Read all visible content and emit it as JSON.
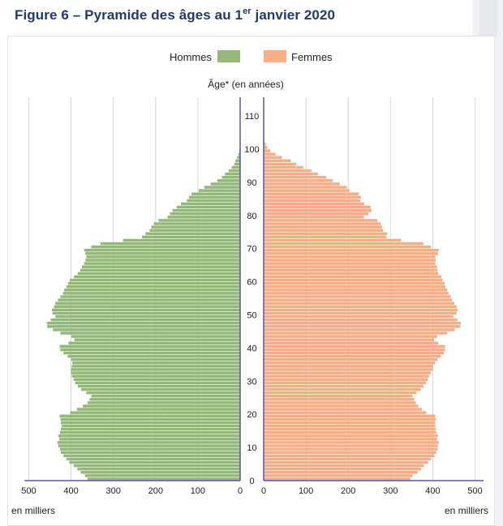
{
  "title": {
    "prefix": "Figure 6 – Pyramide des âges au 1",
    "sup": "er",
    "suffix": " janvier 2020"
  },
  "legend": {
    "hommes": "Hommes",
    "femmes": "Femmes"
  },
  "axis": {
    "y_label": "Âge* (en années)",
    "x_unit_left": "en milliers",
    "x_unit_right": "en milliers"
  },
  "colors": {
    "hommes": "#93b878",
    "femmes": "#f7ad86",
    "axis": "#5b57a8",
    "grid": "#d6d6d6",
    "title": "#1f3a6b"
  },
  "chart_data": {
    "type": "bar",
    "orientation": "horizontal-pyramid",
    "title": "Figure 6 – Pyramide des âges au 1er janvier 2020",
    "ylabel": "Âge* (en années)",
    "xlabel": "en milliers",
    "ylim": [
      0,
      115
    ],
    "xlim": [
      0,
      500
    ],
    "x_ticks": [
      500,
      400,
      300,
      200,
      100,
      0,
      100,
      200,
      300,
      400,
      500
    ],
    "y_ticks": [
      0,
      10,
      20,
      30,
      40,
      50,
      60,
      70,
      80,
      90,
      100,
      110
    ],
    "grid": true,
    "legend_position": "top",
    "ages": [
      0,
      1,
      2,
      3,
      4,
      5,
      6,
      7,
      8,
      9,
      10,
      11,
      12,
      13,
      14,
      15,
      16,
      17,
      18,
      19,
      20,
      21,
      22,
      23,
      24,
      25,
      26,
      27,
      28,
      29,
      30,
      31,
      32,
      33,
      34,
      35,
      36,
      37,
      38,
      39,
      40,
      41,
      42,
      43,
      44,
      45,
      46,
      47,
      48,
      49,
      50,
      51,
      52,
      53,
      54,
      55,
      56,
      57,
      58,
      59,
      60,
      61,
      62,
      63,
      64,
      65,
      66,
      67,
      68,
      69,
      70,
      71,
      72,
      73,
      74,
      75,
      76,
      77,
      78,
      79,
      80,
      81,
      82,
      83,
      84,
      85,
      86,
      87,
      88,
      89,
      90,
      91,
      92,
      93,
      94,
      95,
      96,
      97,
      98,
      99,
      100,
      101,
      102,
      103,
      104,
      105
    ],
    "series": [
      {
        "name": "Hommes",
        "values": [
          361,
          367,
          377,
          385,
          394,
          404,
          411,
          418,
          424,
          426,
          430,
          432,
          428,
          430,
          426,
          424,
          422,
          424,
          425,
          427,
          402,
          386,
          372,
          361,
          356,
          352,
          364,
          376,
          384,
          390,
          394,
          398,
          400,
          400,
          398,
          397,
          400,
          408,
          418,
          425,
          427,
          406,
          392,
          399,
          425,
          443,
          456,
          457,
          448,
          437,
          444,
          445,
          440,
          437,
          431,
          425,
          419,
          416,
          411,
          407,
          403,
          393,
          384,
          378,
          374,
          369,
          366,
          364,
          366,
          369,
          352,
          330,
          277,
          232,
          224,
          214,
          210,
          204,
          193,
          172,
          166,
          160,
          150,
          140,
          126,
          121,
          115,
          98,
          85,
          70,
          54,
          43,
          36,
          27,
          20,
          14,
          11,
          7,
          4,
          2,
          1,
          0.5,
          0.2,
          0.1,
          0.05,
          0
        ]
      },
      {
        "name": "Femmes",
        "values": [
          347,
          352,
          364,
          372,
          379,
          389,
          396,
          404,
          408,
          412,
          412,
          414,
          410,
          412,
          408,
          407,
          406,
          406,
          407,
          406,
          385,
          374,
          366,
          360,
          356,
          352,
          361,
          371,
          378,
          384,
          388,
          391,
          395,
          400,
          401,
          405,
          411,
          419,
          426,
          429,
          429,
          413,
          403,
          410,
          434,
          452,
          465,
          466,
          458,
          448,
          456,
          459,
          456,
          451,
          446,
          442,
          437,
          434,
          430,
          428,
          423,
          420,
          413,
          411,
          410,
          406,
          407,
          406,
          412,
          414,
          395,
          378,
          325,
          290,
          292,
          282,
          280,
          277,
          269,
          237,
          248,
          255,
          253,
          238,
          229,
          230,
          225,
          203,
          197,
          180,
          163,
          148,
          128,
          113,
          94,
          77,
          64,
          43,
          28,
          16,
          9,
          5,
          2,
          1,
          0.5,
          0
        ]
      }
    ]
  }
}
